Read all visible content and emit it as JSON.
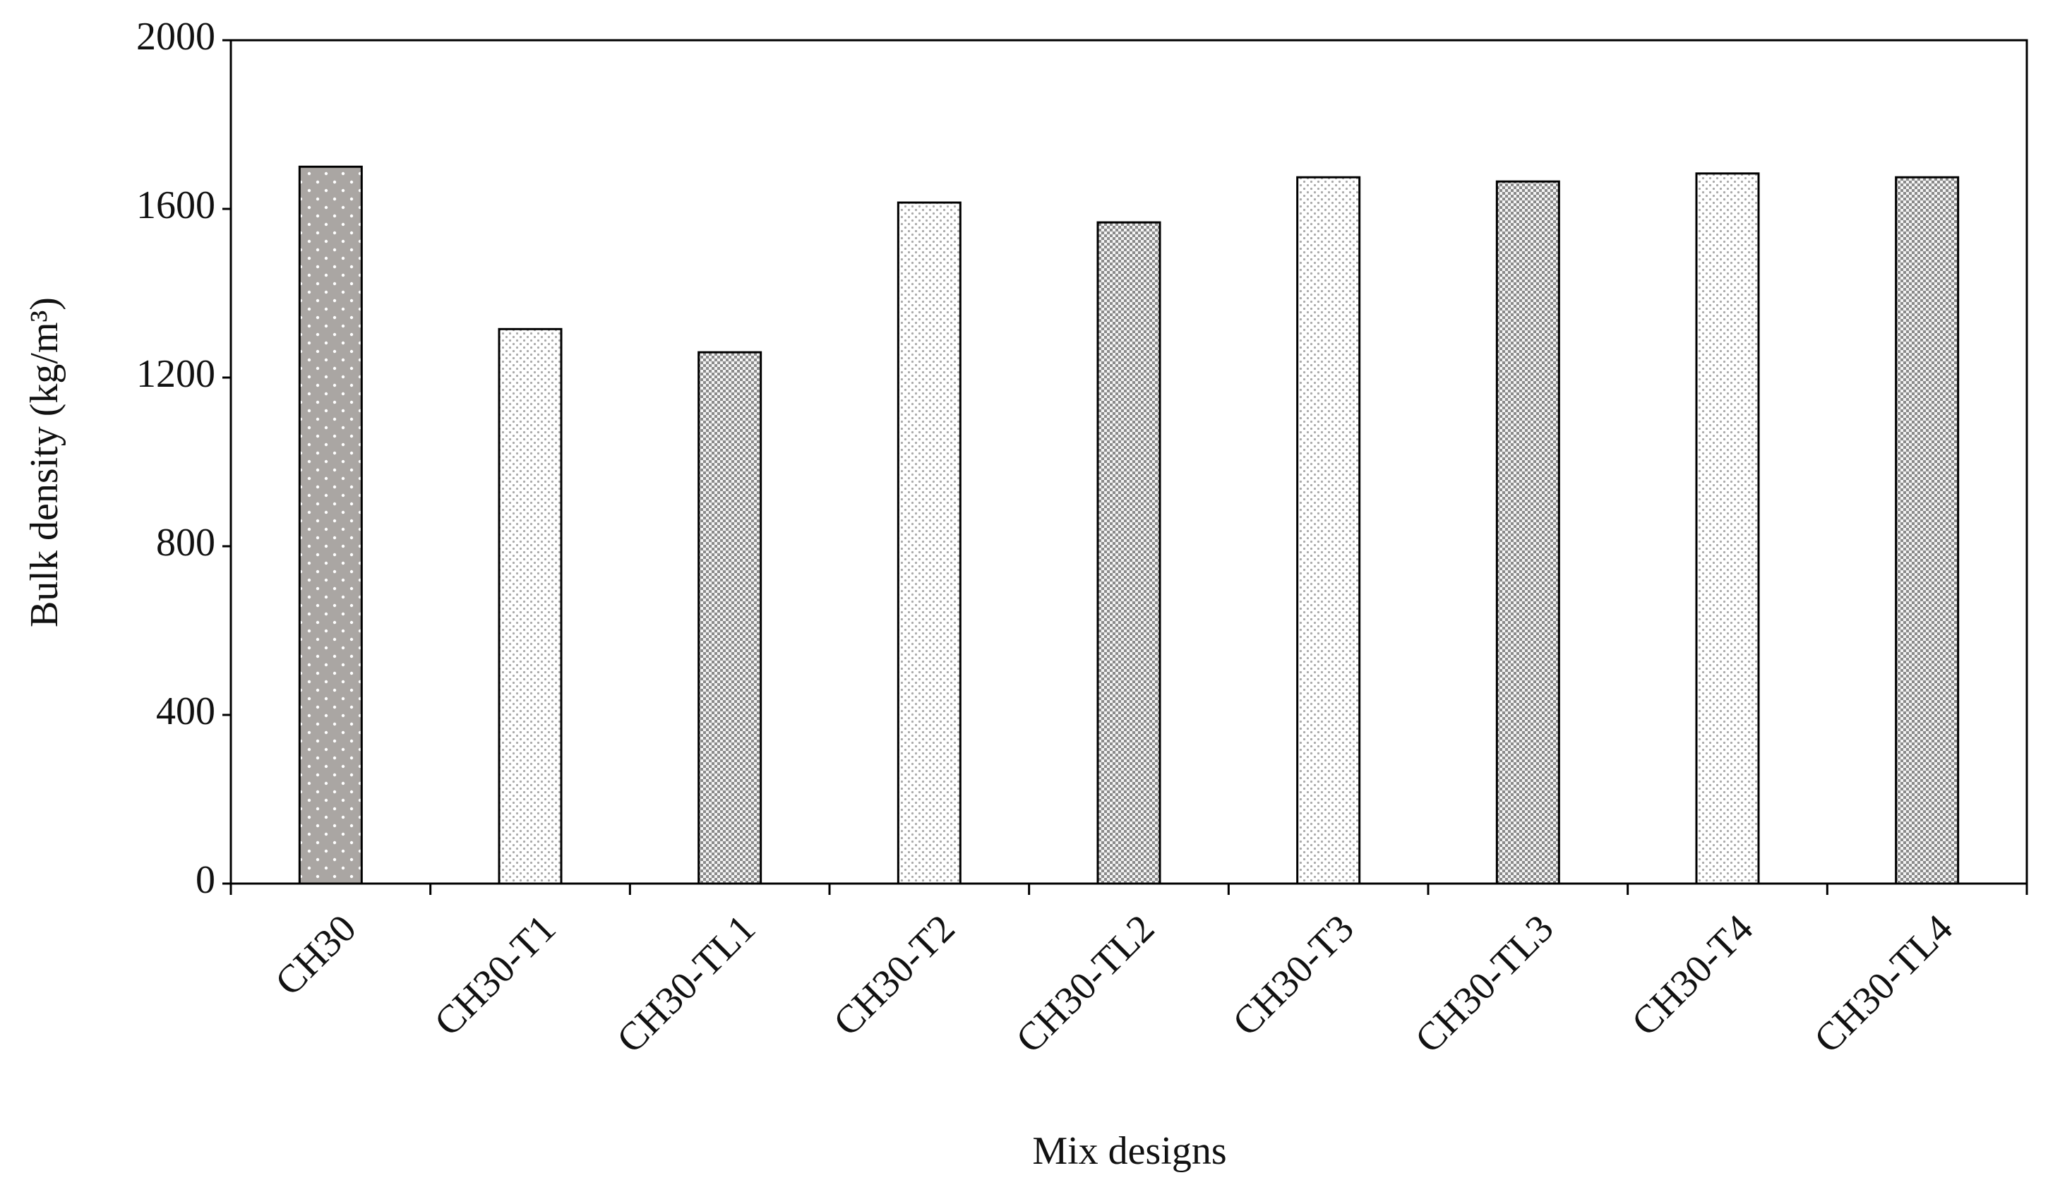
{
  "chart_data": {
    "type": "bar",
    "x_label": "Mix designs",
    "y_label": "Bulk density (kg/m³)",
    "categories": [
      "CH30",
      "CH30-T1",
      "CH30-TL1",
      "CH30-T2",
      "CH30-TL2",
      "CH30-T3",
      "CH30-TL3",
      "CH30-T4",
      "CH30-TL4"
    ],
    "values": [
      1700,
      1315,
      1260,
      1615,
      1568,
      1675,
      1665,
      1684,
      1675
    ],
    "colors": [
      "#aaa6a3",
      "#ffffff",
      "#bdbdbd",
      "#ffffff",
      "#bdbdbd",
      "#ffffff",
      "#bdbdbd",
      "#ffffff",
      "#bdbdbd"
    ],
    "patterns": [
      "dots",
      "dots",
      "checker",
      "dots",
      "checker",
      "dots",
      "checker",
      "dots",
      "checker"
    ],
    "ylim": [
      0,
      2000
    ],
    "yticks": [
      0,
      400,
      800,
      1200,
      1600,
      2000
    ],
    "grid": false
  }
}
